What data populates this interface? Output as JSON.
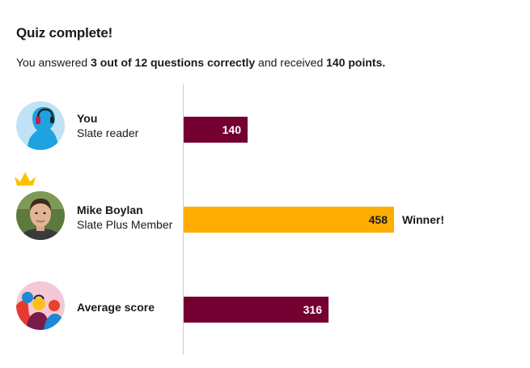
{
  "quiz": {
    "title": "Quiz complete!",
    "summary": {
      "prefix": "You answered ",
      "correct": "3 out of 12 questions correctly",
      "middle": " and received ",
      "points": "140 points."
    }
  },
  "scores": {
    "max": 458,
    "rows": [
      {
        "name": "You",
        "role": "Slate reader",
        "score": 140,
        "value_label": "140",
        "color": "#730031"
      },
      {
        "name": "Mike Boylan",
        "role": "Slate Plus Member",
        "score": 458,
        "value_label": "458",
        "color": "#ffad00",
        "badge": "Winner!",
        "crown_color": "#ffc107"
      },
      {
        "name": "Average score",
        "role": "",
        "score": 316,
        "value_label": "316",
        "color": "#730031"
      }
    ]
  },
  "icons": {
    "you_avatar": "headphones-listener-icon",
    "mike_avatar": "user-photo-avatar",
    "average_avatar": "crowd-illustration-icon",
    "crown": "crown-icon"
  }
}
